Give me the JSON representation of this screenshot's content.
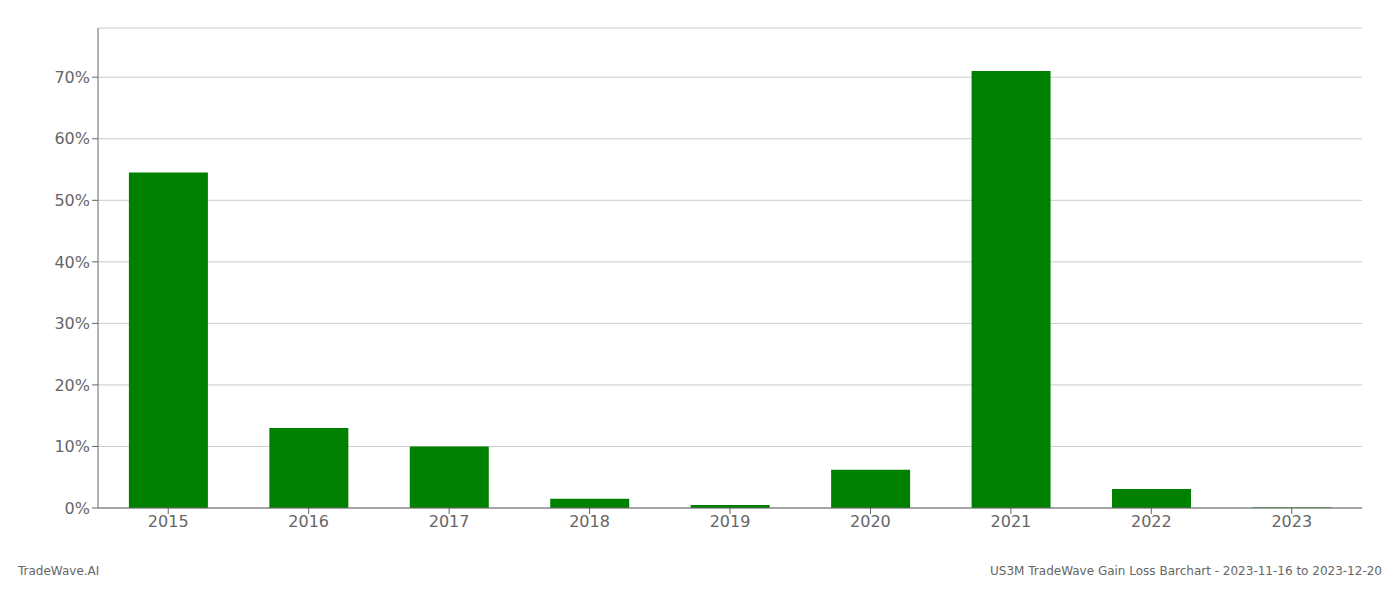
{
  "chart_data": {
    "type": "bar",
    "categories": [
      "2015",
      "2016",
      "2017",
      "2018",
      "2019",
      "2020",
      "2021",
      "2022",
      "2023"
    ],
    "values": [
      0.545,
      0.13,
      0.1,
      0.015,
      0.005,
      0.062,
      0.71,
      0.031,
      0.001
    ],
    "color": "#008000",
    "ylim": [
      0,
      0.78
    ],
    "yticks": [
      {
        "value": 0.0,
        "label": "0%"
      },
      {
        "value": 0.1,
        "label": "10%"
      },
      {
        "value": 0.2,
        "label": "20%"
      },
      {
        "value": 0.3,
        "label": "30%"
      },
      {
        "value": 0.4,
        "label": "40%"
      },
      {
        "value": 0.5,
        "label": "50%"
      },
      {
        "value": 0.6,
        "label": "60%"
      },
      {
        "value": 0.7,
        "label": "70%"
      }
    ],
    "grid": true,
    "annotations": [
      "TradeWave.AI",
      "US3M TradeWave Gain Loss Barchart - 2023-11-16 to 2023-12-20"
    ]
  }
}
